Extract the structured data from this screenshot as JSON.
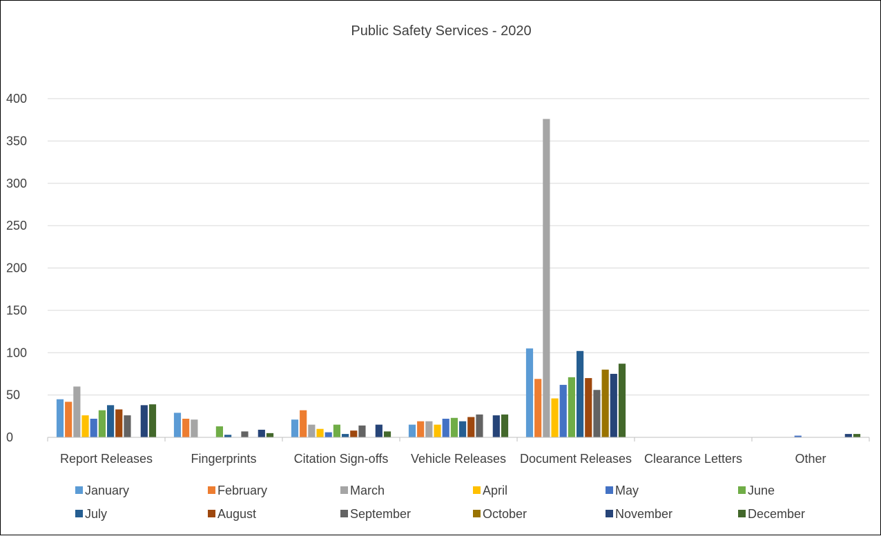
{
  "chart_data": {
    "type": "bar",
    "title": "Public Safety Services - 2020",
    "xlabel": "",
    "ylabel": "",
    "ylim": [
      0,
      400
    ],
    "yticks": [
      0,
      50,
      100,
      150,
      200,
      250,
      300,
      350,
      400
    ],
    "grid": true,
    "legend_position": "bottom",
    "categories": [
      "Report Releases",
      "Fingerprints",
      "Citation Sign-offs",
      "Vehicle Releases",
      "Document Releases",
      "Clearance Letters",
      "Other"
    ],
    "series": [
      {
        "name": "January",
        "color": "#5B9BD5",
        "values": [
          45,
          29,
          21,
          15,
          105,
          0,
          0
        ]
      },
      {
        "name": "February",
        "color": "#ED7D31",
        "values": [
          42,
          22,
          32,
          19,
          69,
          0,
          0
        ]
      },
      {
        "name": "March",
        "color": "#A5A5A5",
        "values": [
          60,
          21,
          15,
          19,
          376,
          0,
          0
        ]
      },
      {
        "name": "April",
        "color": "#FFC000",
        "values": [
          26,
          0,
          10,
          15,
          46,
          0,
          0
        ]
      },
      {
        "name": "May",
        "color": "#4472C4",
        "values": [
          22,
          0,
          6,
          22,
          62,
          0,
          2
        ]
      },
      {
        "name": "June",
        "color": "#70AD47",
        "values": [
          32,
          13,
          15,
          23,
          71,
          0,
          0
        ]
      },
      {
        "name": "July",
        "color": "#255E91",
        "values": [
          38,
          3,
          4,
          19,
          102,
          0,
          0
        ]
      },
      {
        "name": "August",
        "color": "#9E480E",
        "values": [
          33,
          0,
          8,
          24,
          70,
          0,
          0
        ]
      },
      {
        "name": "September",
        "color": "#636363",
        "values": [
          26,
          7,
          14,
          27,
          56,
          0,
          0
        ]
      },
      {
        "name": "October",
        "color": "#997300",
        "values": [
          0,
          0,
          0,
          0,
          80,
          0,
          0
        ]
      },
      {
        "name": "November",
        "color": "#264478",
        "values": [
          38,
          9,
          15,
          26,
          75,
          0,
          4
        ]
      },
      {
        "name": "December",
        "color": "#43682B",
        "values": [
          39,
          5,
          7,
          27,
          87,
          0,
          4
        ]
      }
    ]
  }
}
